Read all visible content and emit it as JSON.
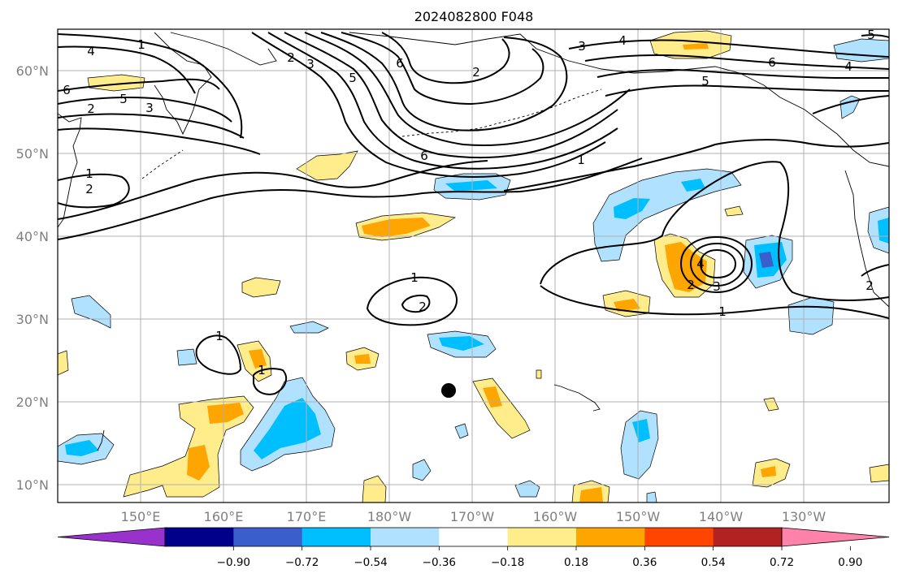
{
  "title": "2024082800 F048",
  "lat_labels": [
    "60°N",
    "50°N",
    "40°N",
    "30°N",
    "20°N",
    "10°N"
  ],
  "lon_labels": [
    "150°E",
    "160°E",
    "170°E",
    "180°W",
    "170°W",
    "160°W",
    "150°W",
    "140°W",
    "130°W"
  ],
  "colorbar": {
    "ticks": [
      "−0.90",
      "−0.72",
      "−0.54",
      "−0.36",
      "−0.18",
      "0.18",
      "0.36",
      "0.54",
      "0.72",
      "0.90"
    ],
    "colors": [
      "#9932cc",
      "#00008b",
      "#3a5fcd",
      "#00bfff",
      "#b0e2ff",
      "#ffffff",
      "#ffec8b",
      "#ffa500",
      "#ff4500",
      "#b22222",
      "#ff82ab"
    ]
  },
  "contour_labels": [
    "1",
    "2",
    "3",
    "4",
    "5",
    "6"
  ],
  "marker": "storm-position-dot"
}
